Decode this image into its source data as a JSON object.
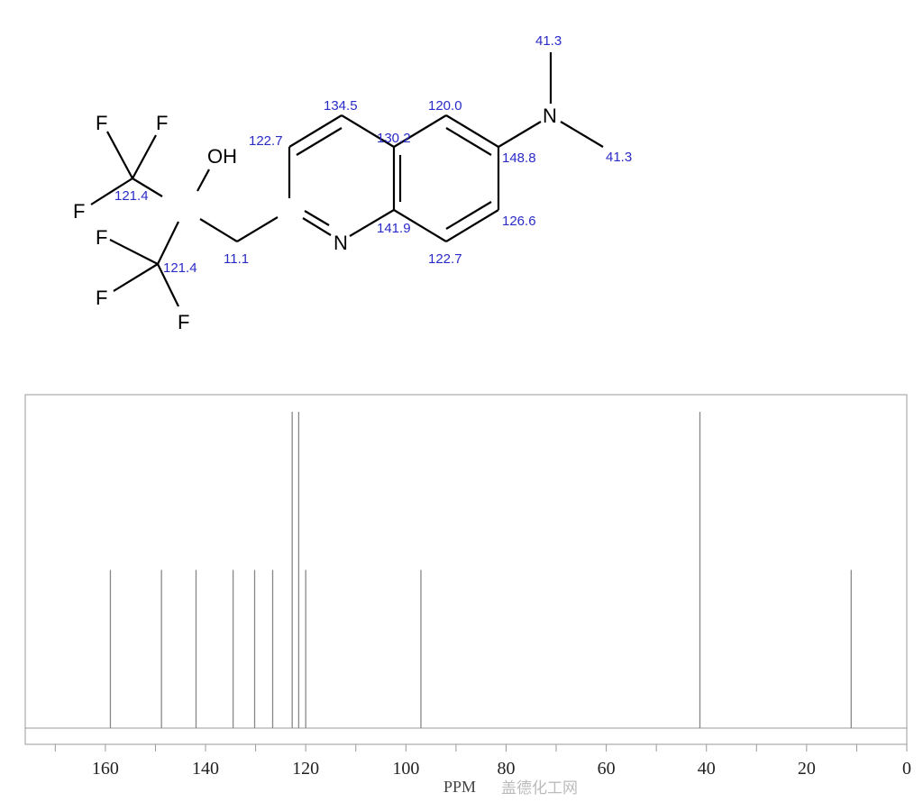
{
  "molecule": {
    "atoms": {
      "F1": "F",
      "F2": "F",
      "F3": "F",
      "F4": "F",
      "F5": "F",
      "F6": "F",
      "OH": "OH",
      "N_ring": "N",
      "N_amine": "N"
    },
    "shifts": {
      "cf3_upper": "121.4",
      "cf3_lower": "121.4",
      "ch2": "11.1",
      "c3": "122.7",
      "c4": "134.5",
      "c4a": "130.2",
      "c8a": "141.9",
      "c5": "120.0",
      "c6": "148.8",
      "c7": "126.6",
      "c8": "122.7",
      "me1": "41.3",
      "me2": "41.3"
    }
  },
  "chart_data": {
    "type": "bar",
    "xlabel": "PPM",
    "xlim": [
      176,
      0
    ],
    "x_reversed": true,
    "xticks": [
      160,
      140,
      120,
      100,
      80,
      60,
      40,
      20,
      0
    ],
    "minor_tick_step": 10,
    "grid": false,
    "peaks": [
      {
        "ppm": 159.0,
        "intensity": 0.5
      },
      {
        "ppm": 148.8,
        "intensity": 0.5
      },
      {
        "ppm": 141.9,
        "intensity": 0.5
      },
      {
        "ppm": 134.5,
        "intensity": 0.5
      },
      {
        "ppm": 130.2,
        "intensity": 0.5
      },
      {
        "ppm": 126.6,
        "intensity": 0.5
      },
      {
        "ppm": 122.7,
        "intensity": 1.0
      },
      {
        "ppm": 121.4,
        "intensity": 1.0
      },
      {
        "ppm": 120.0,
        "intensity": 0.5
      },
      {
        "ppm": 97.0,
        "intensity": 0.5
      },
      {
        "ppm": 41.3,
        "intensity": 1.0
      },
      {
        "ppm": 11.1,
        "intensity": 0.5
      }
    ],
    "colors": {
      "peak": "#888888",
      "frame": "#999999",
      "shift_label": "#2a2ac8"
    }
  },
  "watermark": "盖德化工网"
}
